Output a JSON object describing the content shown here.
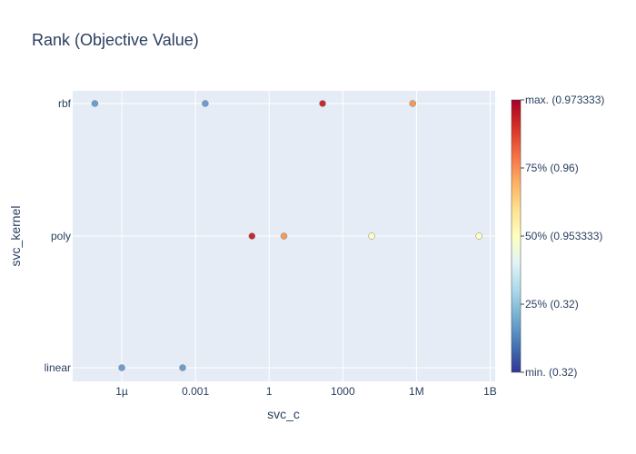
{
  "chart_data": {
    "type": "scatter",
    "title": "Rank (Objective Value)",
    "xlabel": "svc_c",
    "ylabel": "svc_kernel",
    "x_scale": "log",
    "xlim": [
      1e-08,
      1600000000.0
    ],
    "x_ticks": [
      {
        "value": 1e-06,
        "label": "1µ"
      },
      {
        "value": 0.001,
        "label": "0.001"
      },
      {
        "value": 1,
        "label": "1"
      },
      {
        "value": 1000,
        "label": "1000"
      },
      {
        "value": 1000000.0,
        "label": "1M"
      },
      {
        "value": 1000000000.0,
        "label": "1B"
      }
    ],
    "categories": [
      "linear",
      "poly",
      "rbf"
    ],
    "grid": true,
    "colorbar": {
      "ticks": [
        "max. (0.973333)",
        "75% (0.96)",
        "50% (0.953333)",
        "25% (0.32)",
        "min. (0.32)"
      ],
      "colorscale": [
        "#313695",
        "#4575b4",
        "#74add1",
        "#abd9e9",
        "#e0f3f8",
        "#ffffbf",
        "#fee090",
        "#fdae61",
        "#f46d43",
        "#d73027",
        "#a50026"
      ]
    },
    "points": [
      {
        "x": 8e-08,
        "y": "rbf",
        "color": "#6a9ed0"
      },
      {
        "x": 0.0025,
        "y": "rbf",
        "color": "#6a9ed0"
      },
      {
        "x": 150,
        "y": "rbf",
        "color": "#c62a2e"
      },
      {
        "x": 700000,
        "y": "rbf",
        "color": "#f29a5e"
      },
      {
        "x": 0.2,
        "y": "poly",
        "color": "#c62a2e"
      },
      {
        "x": 4,
        "y": "poly",
        "color": "#f29a5e"
      },
      {
        "x": 15000,
        "y": "poly",
        "color": "#ffffbf"
      },
      {
        "x": 350000000.0,
        "y": "poly",
        "color": "#ffffbf"
      },
      {
        "x": 1e-06,
        "y": "linear",
        "color": "#6a9ed0"
      },
      {
        "x": 0.0003,
        "y": "linear",
        "color": "#6a9ed0"
      }
    ]
  }
}
